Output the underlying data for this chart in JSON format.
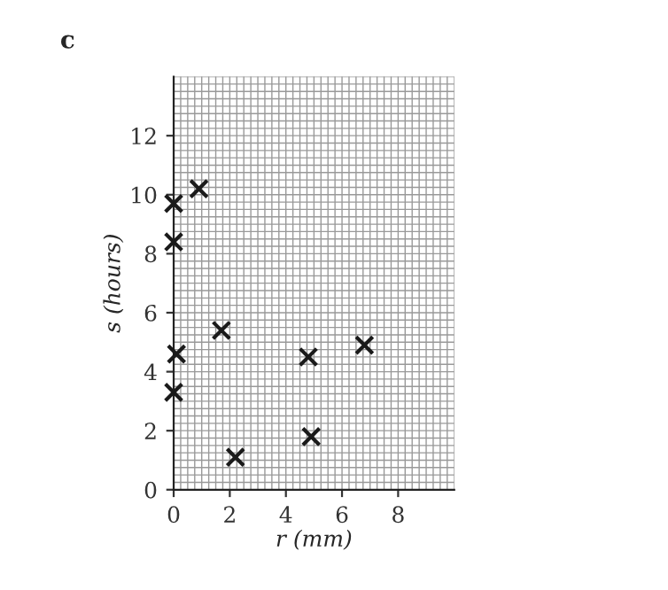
{
  "chart_data": {
    "type": "scatter",
    "title": "c",
    "xlabel": "r (mm)",
    "ylabel": "s (hours)",
    "x": [
      0,
      0.9,
      0,
      1.7,
      0.1,
      0,
      2.2,
      4.8,
      4.9,
      6.8
    ],
    "series": [
      {
        "color": "#1a1a1a",
        "values": [
          9.7,
          10.2,
          8.4,
          5.4,
          4.6,
          3.3,
          1.1,
          4.5,
          1.8,
          4.9
        ]
      }
    ],
    "marker": "cross",
    "xlim": [
      0,
      10
    ],
    "ylim": [
      0,
      14
    ],
    "xticks": [
      0,
      2,
      4,
      6,
      8
    ],
    "yticks": [
      0,
      2,
      4,
      6,
      8,
      10,
      12
    ],
    "grid": true
  }
}
